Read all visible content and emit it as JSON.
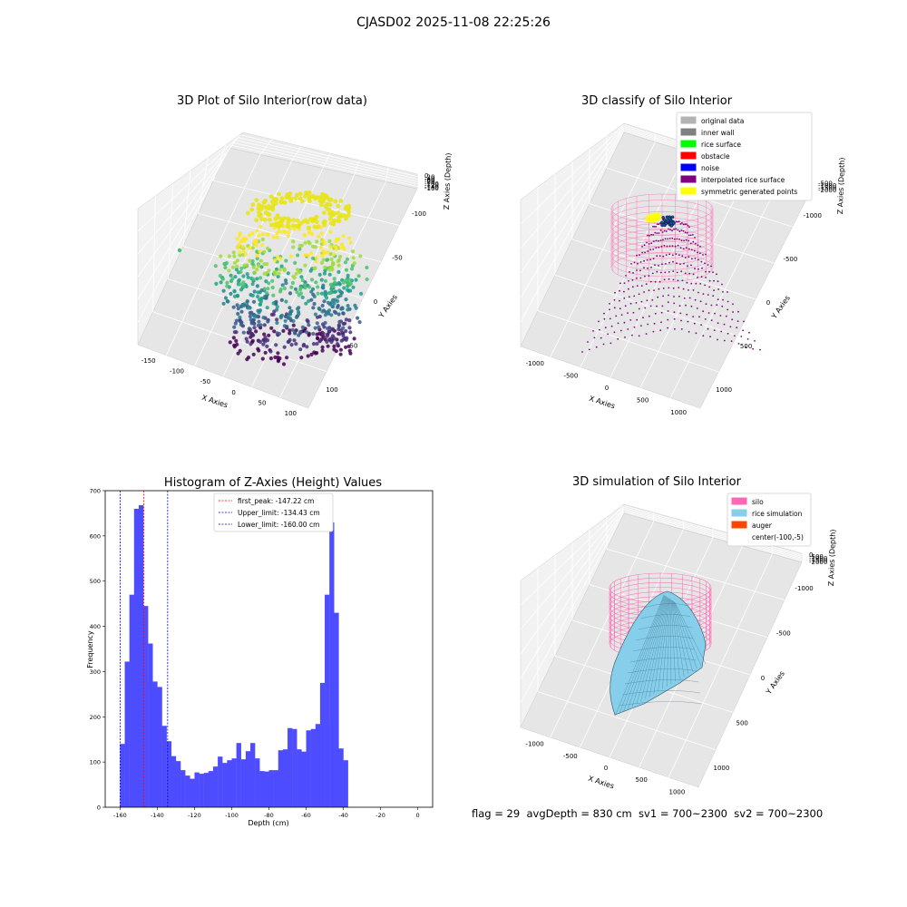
{
  "suptitle": "CJASD02 2025-11-08 22:25:26",
  "panels": {
    "raw": {
      "title": "3D Plot of Silo Interior(row data)",
      "xlabel": "X Axies",
      "ylabel": "Y Axies",
      "zlabel": "Z Axies (Depth)",
      "xticks": [
        "-150",
        "-100",
        "-50",
        "0",
        "50",
        "100"
      ],
      "yticks": [
        "100",
        "50",
        "0",
        "-50",
        "-100"
      ],
      "zticks": [
        "0",
        "-20",
        "-40",
        "-60",
        "-80",
        "-100",
        "-120",
        "-140",
        "-160"
      ]
    },
    "classify": {
      "title": "3D classify of Silo Interior",
      "xlabel": "X Axies",
      "ylabel": "Y Axies",
      "zlabel": "Z Axies (Depth)",
      "xticks": [
        "-1000",
        "-500",
        "0",
        "500",
        "1000"
      ],
      "yticks": [
        "1000",
        "500",
        "0",
        "-500",
        "-1000"
      ],
      "zticks": [
        "-500",
        "-1000",
        "-1500",
        "-2000"
      ],
      "legend": [
        {
          "label": "original data",
          "color": "#b3b3b3"
        },
        {
          "label": "inner wall",
          "color": "#808080"
        },
        {
          "label": "rice surface",
          "color": "#00ff00"
        },
        {
          "label": "obstacle",
          "color": "#ff0000"
        },
        {
          "label": "noise",
          "color": "#0000ff"
        },
        {
          "label": "interpolated rice surface",
          "color": "#800080"
        },
        {
          "label": "symmetric generated points",
          "color": "#ffff00"
        }
      ]
    },
    "simulation": {
      "title": "3D simulation of Silo Interior",
      "xlabel": "X Axies",
      "ylabel": "Y Axies",
      "zlabel": "Z Axies (Depth)",
      "xticks": [
        "-1000",
        "-500",
        "0",
        "500",
        "1000"
      ],
      "yticks": [
        "1000",
        "500",
        "0",
        "-500",
        "-1000"
      ],
      "zticks": [
        "0",
        "-500",
        "-1000",
        "-1500",
        "-2000"
      ],
      "legend": [
        {
          "label": "silo",
          "color": "#ff69b4"
        },
        {
          "label": "rice simulation",
          "color": "#87ceeb"
        },
        {
          "label": "auger",
          "color": "#ff4500"
        },
        {
          "label": "center(-100,-5)",
          "color": "#ffffff"
        }
      ]
    }
  },
  "footer": "flag = 29  avgDepth = 830 cm  sv1 = 700~2300  sv2 = 700~2300",
  "chart_data": {
    "type": "bar",
    "title": "Histogram of Z-Axies (Height) Values",
    "xlabel": "Depth (cm)",
    "ylabel": "Frequency",
    "xlim": [
      -168,
      8
    ],
    "ylim": [
      0,
      700
    ],
    "xticks": [
      -160,
      -140,
      -120,
      -100,
      -80,
      -60,
      -40,
      -20,
      0
    ],
    "yticks": [
      0,
      100,
      200,
      300,
      400,
      500,
      600,
      700
    ],
    "bar_color": "#4d4dff",
    "bin_width": 2.5,
    "bin_start": -160,
    "values": [
      140,
      322,
      470,
      660,
      668,
      445,
      362,
      278,
      266,
      180,
      146,
      113,
      102,
      82,
      70,
      63,
      77,
      74,
      76,
      80,
      90,
      112,
      98,
      104,
      108,
      142,
      106,
      124,
      142,
      108,
      80,
      79,
      82,
      82,
      126,
      128,
      175,
      173,
      128,
      123,
      170,
      173,
      184,
      275,
      470,
      630,
      430,
      130,
      104
    ],
    "vlines": [
      {
        "x": -147.22,
        "label": "first_peak: -147.22 cm",
        "color": "#ff0000"
      },
      {
        "x": -134.43,
        "label": "Upper_limit: -134.43 cm",
        "color": "#0000cc"
      },
      {
        "x": -160.0,
        "label": "Lower_limit: -160.00 cm",
        "color": "#0000cc"
      }
    ],
    "legend_position": "top-center"
  }
}
